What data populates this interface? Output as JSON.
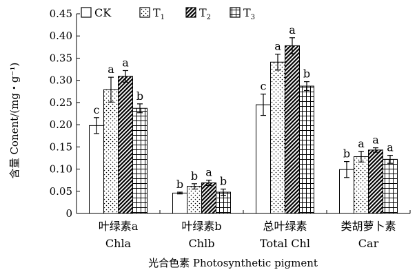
{
  "chart_data": {
    "type": "bar",
    "ylabel": "含量 Conent/(mg・g⁻¹)",
    "xlabel": "光合色素 Photosynthetic pigment",
    "ylim": [
      0,
      0.45
    ],
    "yticks": [
      "0",
      "0.05",
      "0.10",
      "0.15",
      "0.20",
      "0.25",
      "0.30",
      "0.35",
      "0.40",
      "0.45"
    ],
    "categories": [
      {
        "zh": "叶绿素a",
        "en": "Chla"
      },
      {
        "zh": "叶绿素b",
        "en": "Chlb"
      },
      {
        "zh": "总叶绿素",
        "en": "Total Chl"
      },
      {
        "zh": "类胡萝卜素",
        "en": "Car"
      }
    ],
    "series": [
      {
        "name": "CK",
        "pattern": "plain",
        "values": [
          0.198,
          0.046,
          0.245,
          0.099
        ],
        "errors": [
          0.018,
          0.002,
          0.024,
          0.018
        ],
        "letters": [
          "c",
          "b",
          "c",
          "b"
        ]
      },
      {
        "name": "T1",
        "pattern": "dots",
        "values": [
          0.279,
          0.061,
          0.341,
          0.128
        ],
        "errors": [
          0.028,
          0.006,
          0.018,
          0.012
        ],
        "letters": [
          "a",
          "b",
          "a",
          "a"
        ]
      },
      {
        "name": "T2",
        "pattern": "diagonal",
        "values": [
          0.309,
          0.069,
          0.378,
          0.143
        ],
        "errors": [
          0.013,
          0.006,
          0.018,
          0.005
        ],
        "letters": [
          "a",
          "a",
          "a",
          "a"
        ]
      },
      {
        "name": "T3",
        "pattern": "grid",
        "values": [
          0.237,
          0.048,
          0.287,
          0.122
        ],
        "errors": [
          0.01,
          0.007,
          0.01,
          0.009
        ],
        "letters": [
          "b",
          "b",
          "b",
          "a"
        ]
      }
    ],
    "legend": [
      {
        "base": "CK",
        "sub": ""
      },
      {
        "base": "T",
        "sub": "1"
      },
      {
        "base": "T",
        "sub": "2"
      },
      {
        "base": "T",
        "sub": "3"
      }
    ],
    "legend_position": "top-left",
    "grid": false
  }
}
